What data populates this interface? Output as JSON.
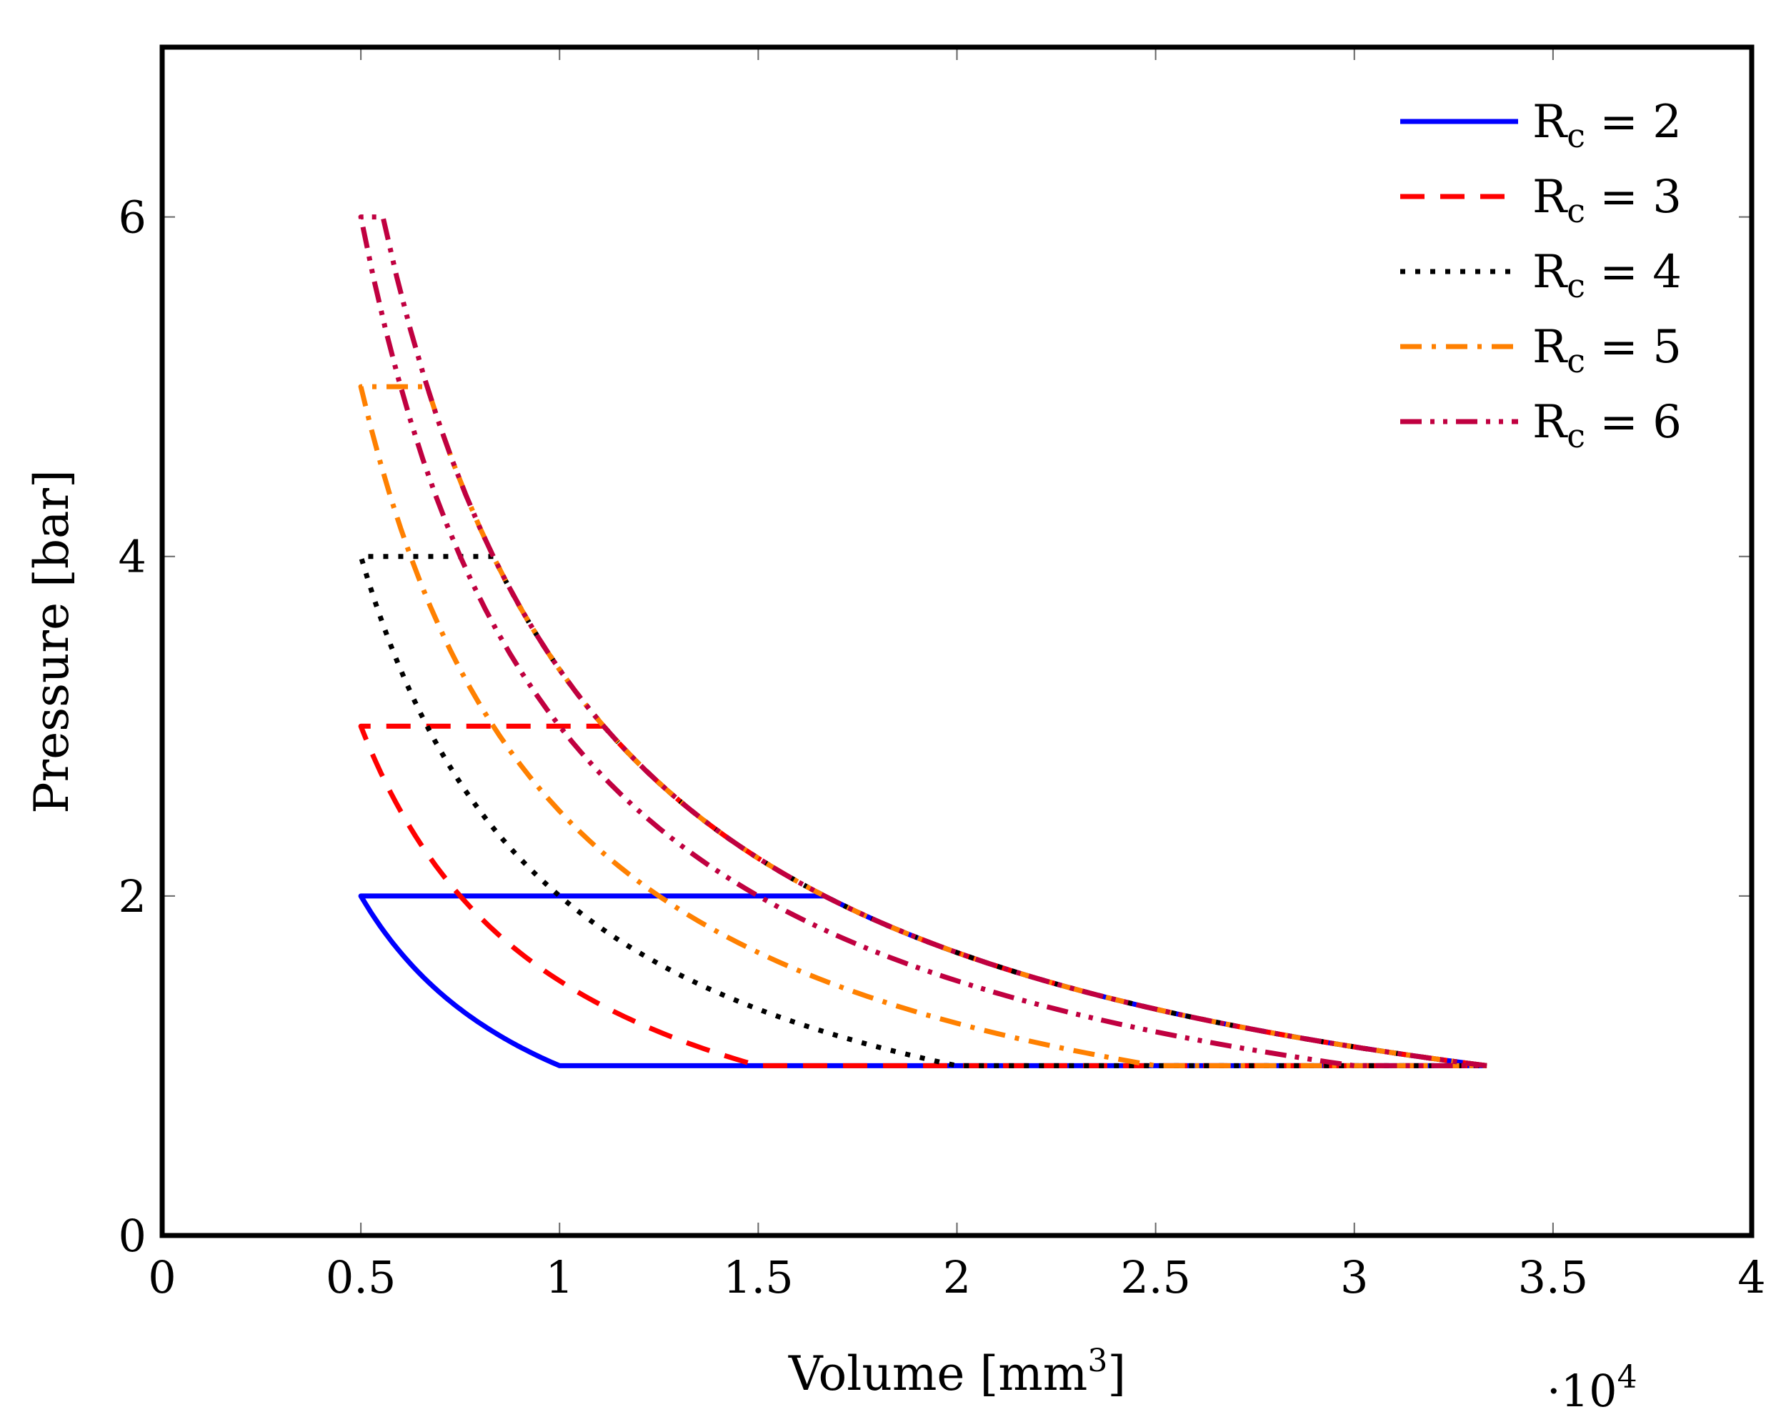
{
  "chart_data": {
    "type": "line",
    "title": "",
    "xlabel": "Volume [mm",
    "xlabel_superscript": "3",
    "xlabel_suffix": "]",
    "ylabel": "Pressure [bar]",
    "x_multiplier": "·10",
    "x_multiplier_exponent": "4",
    "xlim": [
      0,
      40000
    ],
    "ylim": [
      0,
      7
    ],
    "xticks": [
      0,
      5000,
      10000,
      15000,
      20000,
      25000,
      30000,
      35000,
      40000
    ],
    "xtick_labels": [
      "0",
      "0.5",
      "1",
      "1.5",
      "2",
      "2.5",
      "3",
      "3.5",
      "4"
    ],
    "yticks": [
      0,
      2,
      4,
      6
    ],
    "ytick_labels": [
      "0",
      "2",
      "4",
      "6"
    ],
    "grid": false,
    "legend_position": "top-right",
    "polytropic_n": 1.0,
    "atmospheric_pressure": 1.0,
    "v_clearance": 5000,
    "v_max": 33333,
    "series": [
      {
        "name": "R",
        "subscript": "c",
        "suffix": " = 2",
        "rc": 2,
        "color": "#0000ff",
        "dash": "none"
      },
      {
        "name": "R",
        "subscript": "c",
        "suffix": " = 3",
        "rc": 3,
        "color": "#ff0000",
        "dash": "dashed"
      },
      {
        "name": "R",
        "subscript": "c",
        "suffix": " = 4",
        "rc": 4,
        "color": "#000000",
        "dash": "dotted"
      },
      {
        "name": "R",
        "subscript": "c",
        "suffix": " = 5",
        "rc": 5,
        "color": "#ff8000",
        "dash": "dashdot"
      },
      {
        "name": "R",
        "subscript": "c",
        "suffix": " = 6",
        "rc": 6,
        "color": "#c00040",
        "dash": "dashdotdot"
      }
    ]
  }
}
